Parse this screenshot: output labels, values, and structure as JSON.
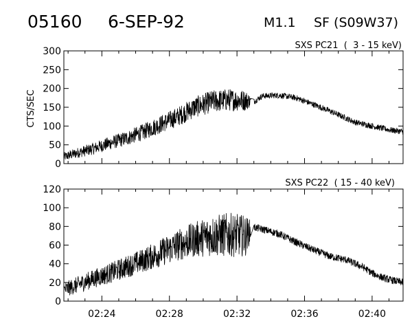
{
  "header": {
    "event_id": "05160",
    "date": "6-SEP-92",
    "flare_class": "M1.1",
    "region": "SF (S09W37)"
  },
  "chart_data": [
    {
      "type": "line",
      "title": "SXS PC21  (  3 - 15 keV)",
      "ylabel": "CTS/SEC",
      "xlabel": "",
      "ylim": [
        0,
        300
      ],
      "yticks": [
        0,
        50,
        100,
        150,
        200,
        250,
        300
      ],
      "xlim": [
        "02:21:45",
        "02:41:50"
      ],
      "xticks": [
        "02:24",
        "02:28",
        "02:32",
        "02:36",
        "02:40"
      ],
      "grid": false,
      "series": [
        {
          "color": "#000000",
          "x": [
            "02:21:45",
            "02:22:30",
            "02:23:30",
            "02:24:30",
            "02:25:30",
            "02:26:30",
            "02:27:30",
            "02:28:30",
            "02:29:30",
            "02:30:30",
            "02:31:30",
            "02:32:30",
            "02:33:00",
            "02:33:30",
            "02:34:30",
            "02:35:30",
            "02:36:30",
            "02:37:30",
            "02:38:30",
            "02:39:00",
            "02:39:30",
            "02:40:00",
            "02:40:30",
            "02:41:00",
            "02:41:50"
          ],
          "values": [
            18,
            28,
            40,
            55,
            68,
            85,
            105,
            125,
            150,
            165,
            170,
            168,
            165,
            180,
            182,
            175,
            158,
            140,
            120,
            110,
            105,
            100,
            95,
            90,
            85
          ],
          "noise": [
            12,
            14,
            16,
            18,
            20,
            22,
            24,
            26,
            28,
            30,
            30,
            28,
            8,
            8,
            8,
            8,
            8,
            8,
            8,
            8,
            8,
            8,
            8,
            8,
            8
          ]
        }
      ]
    },
    {
      "type": "line",
      "title": "SXS PC22  ( 15 - 40 keV)",
      "ylabel": "",
      "xlabel": "",
      "ylim": [
        0,
        120
      ],
      "yticks": [
        0,
        20,
        40,
        60,
        80,
        100,
        120
      ],
      "xlim": [
        "02:21:45",
        "02:41:50"
      ],
      "xticks": [
        "02:24",
        "02:28",
        "02:32",
        "02:36",
        "02:40"
      ],
      "grid": false,
      "series": [
        {
          "color": "#000000",
          "x": [
            "02:21:45",
            "02:22:30",
            "02:23:30",
            "02:24:30",
            "02:25:30",
            "02:26:30",
            "02:27:30",
            "02:28:30",
            "02:29:30",
            "02:30:30",
            "02:31:30",
            "02:32:30",
            "02:33:00",
            "02:33:30",
            "02:34:30",
            "02:35:30",
            "02:36:30",
            "02:37:30",
            "02:38:30",
            "02:39:00",
            "02:39:30",
            "02:40:00",
            "02:40:30",
            "02:41:00",
            "02:41:50"
          ],
          "values": [
            12,
            17,
            24,
            30,
            37,
            44,
            52,
            60,
            66,
            70,
            71,
            70,
            79,
            77,
            72,
            63,
            55,
            48,
            44,
            40,
            36,
            30,
            26,
            23,
            20
          ],
          "noise": [
            8,
            9,
            10,
            11,
            12,
            13,
            15,
            17,
            19,
            22,
            24,
            22,
            4,
            4,
            4,
            4,
            4,
            4,
            4,
            4,
            4,
            4,
            4,
            4,
            4
          ]
        }
      ]
    }
  ]
}
